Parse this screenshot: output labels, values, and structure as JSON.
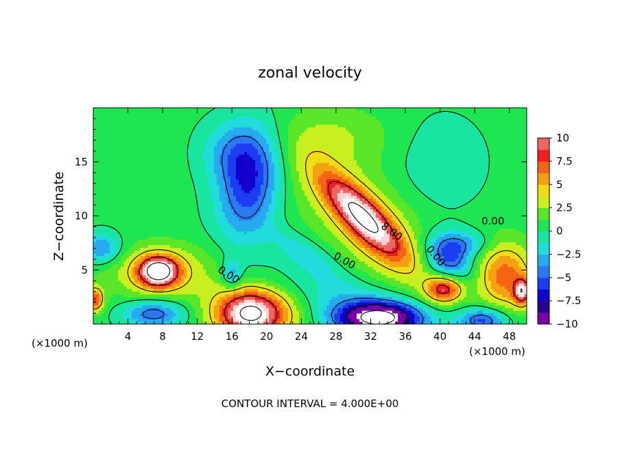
{
  "chart_data": {
    "type": "heatmap",
    "title": "zonal velocity",
    "xlabel": "X−coordinate",
    "ylabel": "Z−coordinate",
    "x_unit_left": "(×1000 m)",
    "x_unit_right": "(×1000 m)",
    "footer": "CONTOUR INTERVAL = 4.000E+00",
    "xlim": [
      0,
      50
    ],
    "ylim": [
      0,
      20
    ],
    "x_ticks": [
      4,
      8,
      12,
      16,
      20,
      24,
      28,
      32,
      36,
      40,
      44,
      48
    ],
    "x_tick_labels": [
      "4",
      "8",
      "12",
      "16",
      "20",
      "24",
      "28",
      "32",
      "36",
      "40",
      "44",
      "48"
    ],
    "y_ticks": [
      5,
      10,
      15
    ],
    "y_tick_labels": [
      "5",
      "10",
      "15"
    ],
    "colorbar": {
      "min": -10,
      "max": 10,
      "tick_values": [
        10,
        7.5,
        5,
        2.5,
        0,
        -2.5,
        -5,
        -7.5,
        -10
      ],
      "tick_labels": [
        "10",
        "7.5",
        "5",
        "2.5",
        "0",
        "−2.5",
        "−5",
        "−7.5",
        "−10"
      ]
    },
    "contour_interval": 4,
    "contour_labels": [
      {
        "text": "0.00",
        "x": 15.4,
        "z": 4.3,
        "angle": 33
      },
      {
        "text": "0.00",
        "x": 28.8,
        "z": 5.6,
        "angle": 30
      },
      {
        "text": "8.00",
        "x": 34.2,
        "z": 8.3,
        "angle": 36
      },
      {
        "text": "0.00",
        "x": 39.2,
        "z": 6.1,
        "angle": 50
      },
      {
        "text": "0.00",
        "x": 46.1,
        "z": 9.2,
        "angle": 0
      }
    ],
    "features": [
      {
        "x": 18.0,
        "z": 13.0,
        "value": -6.5,
        "sx": 2.4,
        "sz": 3.6,
        "rot": -15
      },
      {
        "x": 16.0,
        "z": 16.0,
        "value": -3.0,
        "sx": 2.5,
        "sz": 2.0,
        "rot": 0
      },
      {
        "x": 31.0,
        "z": 10.0,
        "value": 9.5,
        "sx": 4.2,
        "sz": 1.3,
        "rot": -38
      },
      {
        "x": 32.5,
        "z": 8.5,
        "value": 3.5,
        "sx": 6.5,
        "sz": 3.0,
        "rot": -38
      },
      {
        "x": 7.5,
        "z": 4.9,
        "value": 11.0,
        "sx": 1.6,
        "sz": 1.0,
        "rot": 0
      },
      {
        "x": 8.0,
        "z": 4.8,
        "value": 4.0,
        "sx": 4.5,
        "sz": 1.8,
        "rot": 0
      },
      {
        "x": 18.0,
        "z": 1.0,
        "value": 10.0,
        "sx": 2.8,
        "sz": 1.6,
        "rot": 0
      },
      {
        "x": 20.5,
        "z": 1.2,
        "value": 3.5,
        "sx": 4.5,
        "sz": 1.8,
        "rot": 0
      },
      {
        "x": 33.0,
        "z": 0.6,
        "value": -12.0,
        "sx": 3.2,
        "sz": 1.0,
        "rot": 0
      },
      {
        "x": 30.0,
        "z": 1.5,
        "value": -3.5,
        "sx": 7.0,
        "sz": 2.0,
        "rot": -10
      },
      {
        "x": 40.5,
        "z": 3.3,
        "value": 8.5,
        "sx": 1.5,
        "sz": 0.9,
        "rot": 0
      },
      {
        "x": 41.0,
        "z": 6.0,
        "value": -6.5,
        "sx": 2.0,
        "sz": 1.5,
        "rot": -20
      },
      {
        "x": 47.5,
        "z": 4.5,
        "value": 6.5,
        "sx": 2.4,
        "sz": 2.2,
        "rot": -30
      },
      {
        "x": 49.5,
        "z": 3.0,
        "value": 8.0,
        "sx": 0.7,
        "sz": 0.8,
        "rot": 0
      },
      {
        "x": 45.0,
        "z": 0.4,
        "value": -6.0,
        "sx": 2.0,
        "sz": 0.8,
        "rot": 0
      },
      {
        "x": 7.0,
        "z": 1.0,
        "value": -5.5,
        "sx": 2.5,
        "sz": 0.9,
        "rot": 0
      },
      {
        "x": 1.0,
        "z": 7.0,
        "value": -4.5,
        "sx": 1.5,
        "sz": 1.0,
        "rot": 0
      },
      {
        "x": 0.2,
        "z": 2.3,
        "value": 7.0,
        "sx": 0.7,
        "sz": 0.8,
        "rot": 0
      },
      {
        "x": 16.0,
        "z": 4.6,
        "value": -4.0,
        "sx": 0.8,
        "sz": 0.9,
        "rot": 0
      },
      {
        "x": 43.0,
        "z": 7.5,
        "value": -3.0,
        "sx": 2.2,
        "sz": 0.8,
        "rot": 0
      },
      {
        "x": 24.5,
        "z": 6.5,
        "value": -2.5,
        "sx": 3.0,
        "sz": 1.0,
        "rot": -25
      },
      {
        "x": 28.0,
        "z": 17.5,
        "value": 1.8,
        "sx": 5.0,
        "sz": 2.0,
        "rot": 0
      },
      {
        "x": 40.0,
        "z": 15.0,
        "value": -1.5,
        "sx": 3.5,
        "sz": 3.0,
        "rot": 0
      },
      {
        "x": 25.0,
        "z": 14.0,
        "value": 0.8,
        "sx": 3.0,
        "sz": 3.0,
        "rot": 0
      }
    ],
    "background_value": 0.4,
    "grid": false,
    "legend": "colorbar-right"
  }
}
